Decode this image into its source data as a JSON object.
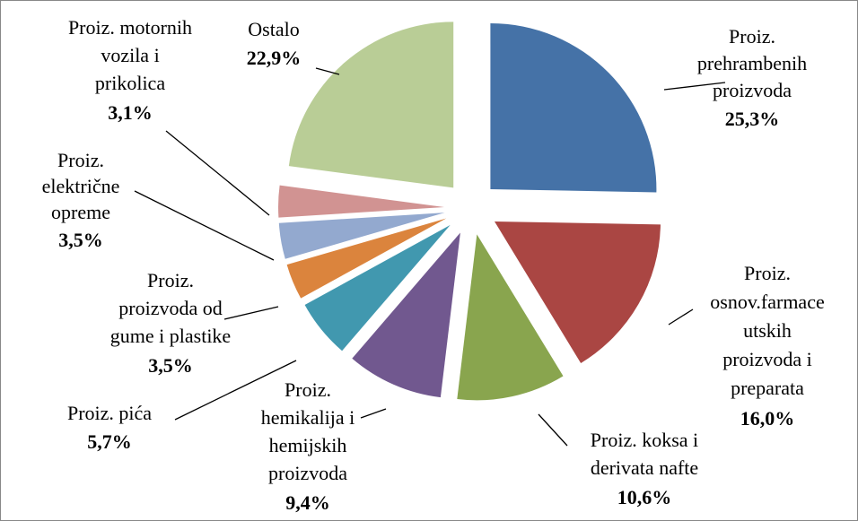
{
  "chart_data": {
    "type": "pie",
    "categories": [
      "Proiz.\nprehrambenih\nproizvoda",
      "Proiz.\nosnov.farmace\nutskih\nproizvoda i\npreparata",
      "Proiz. koksa i\nderivata nafte",
      "Proiz.\nhemikalija i\nhemijskih\nproizvoda",
      "Proiz. pića",
      "Proiz.\nproizvoda od\ngume i plastike",
      "Proiz.\nelektrične\nopreme",
      "Proiz. motornih\nvozila i\nprikolica",
      "Ostalo"
    ],
    "values": [
      25.3,
      16.0,
      10.6,
      9.4,
      5.7,
      3.5,
      3.5,
      3.1,
      22.9
    ],
    "value_labels": [
      "25,3%",
      "16,0%",
      "10,6%",
      "9,4%",
      "5,7%",
      "3,5%",
      "3,5%",
      "3,1%",
      "22,9%"
    ],
    "colors": [
      "#4572a7",
      "#aa4643",
      "#89a54e",
      "#71588f",
      "#4198af",
      "#db843d",
      "#93a9cf",
      "#d19392",
      "#b9cd96"
    ]
  }
}
